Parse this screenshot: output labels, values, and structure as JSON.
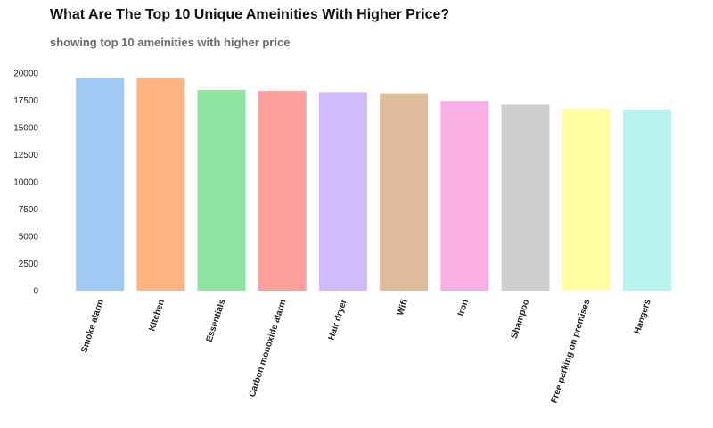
{
  "title": "What Are The Top 10 Unique Ameinities With Higher Price?",
  "subtitle": "showing top 10 ameinities with higher price",
  "chart_data": {
    "type": "bar",
    "categories": [
      "Smoke alarm",
      "Kitchen",
      "Essentials",
      "Carbon monoxide alarm",
      "Hair dryer",
      "Wifi",
      "Iron",
      "Shampoo",
      "Free parking on premises",
      "Hangers"
    ],
    "values": [
      19550,
      19500,
      18450,
      18350,
      18250,
      18150,
      17450,
      17100,
      16750,
      16650
    ],
    "ylim": [
      0,
      20000
    ],
    "yticks": [
      0,
      2500,
      5000,
      7500,
      10000,
      12500,
      15000,
      17500,
      20000
    ],
    "colors": [
      "#a1c9f4",
      "#ffb482",
      "#8de5a1",
      "#ff9f9b",
      "#d0bbff",
      "#debb9b",
      "#fab0e4",
      "#cfcfcf",
      "#fffea3",
      "#b9f2f0"
    ],
    "grid": false,
    "legend": "none",
    "xlabel": "",
    "ylabel": ""
  }
}
